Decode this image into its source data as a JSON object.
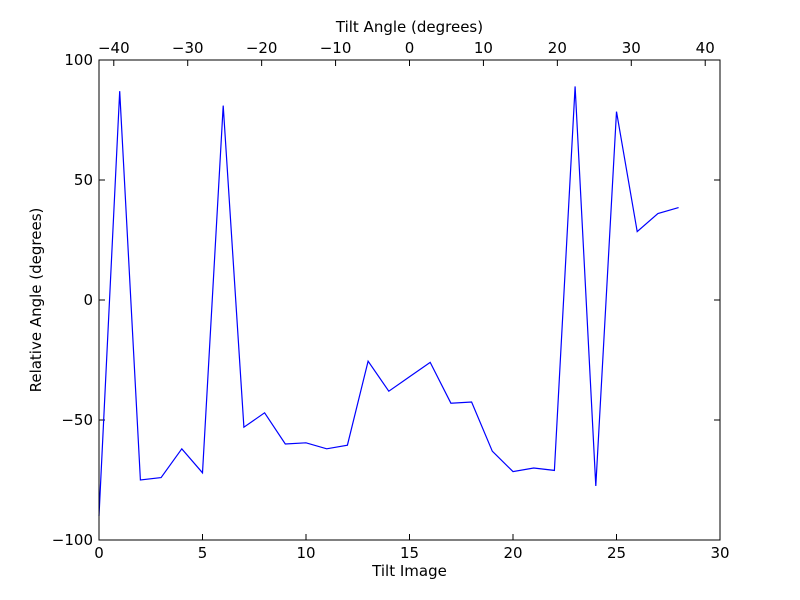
{
  "chart_data": {
    "type": "line",
    "xlabel": "Tilt Image",
    "ylabel": "Relative Angle (degrees)",
    "top_xlabel": "Tilt Angle (degrees)",
    "xlim": [
      0,
      30
    ],
    "ylim": [
      -100,
      100
    ],
    "top_xlim": [
      -42,
      42
    ],
    "x_ticks": [
      0,
      5,
      10,
      15,
      20,
      25,
      30
    ],
    "x_tick_labels": [
      "0",
      "5",
      "10",
      "15",
      "20",
      "25",
      "30"
    ],
    "y_ticks": [
      -100,
      -50,
      0,
      50,
      100
    ],
    "y_tick_labels": [
      "−100",
      "−50",
      "0",
      "50",
      "100"
    ],
    "top_ticks": [
      -40,
      -30,
      -20,
      -10,
      0,
      10,
      20,
      30,
      40
    ],
    "top_tick_labels": [
      "−40",
      "−30",
      "−20",
      "−10",
      "0",
      "10",
      "20",
      "30",
      "40"
    ],
    "grid": false,
    "series": [
      {
        "color": "#0000ff",
        "x": [
          0,
          1,
          2,
          3,
          4,
          5,
          6,
          7,
          8,
          9,
          10,
          11,
          12,
          13,
          14,
          15,
          16,
          17,
          18,
          19,
          20,
          21,
          22,
          23,
          24,
          25,
          26,
          27,
          28
        ],
        "y": [
          -90,
          87,
          -75,
          -74,
          -62,
          -72,
          81,
          -53,
          -47,
          -60,
          -59.5,
          -62,
          -60.5,
          -25.5,
          -38,
          -32,
          -26,
          -43,
          -42.5,
          -63,
          -71.5,
          -70,
          -71,
          89,
          -77.5,
          78.5,
          28.5,
          36,
          38.5
        ]
      }
    ]
  }
}
